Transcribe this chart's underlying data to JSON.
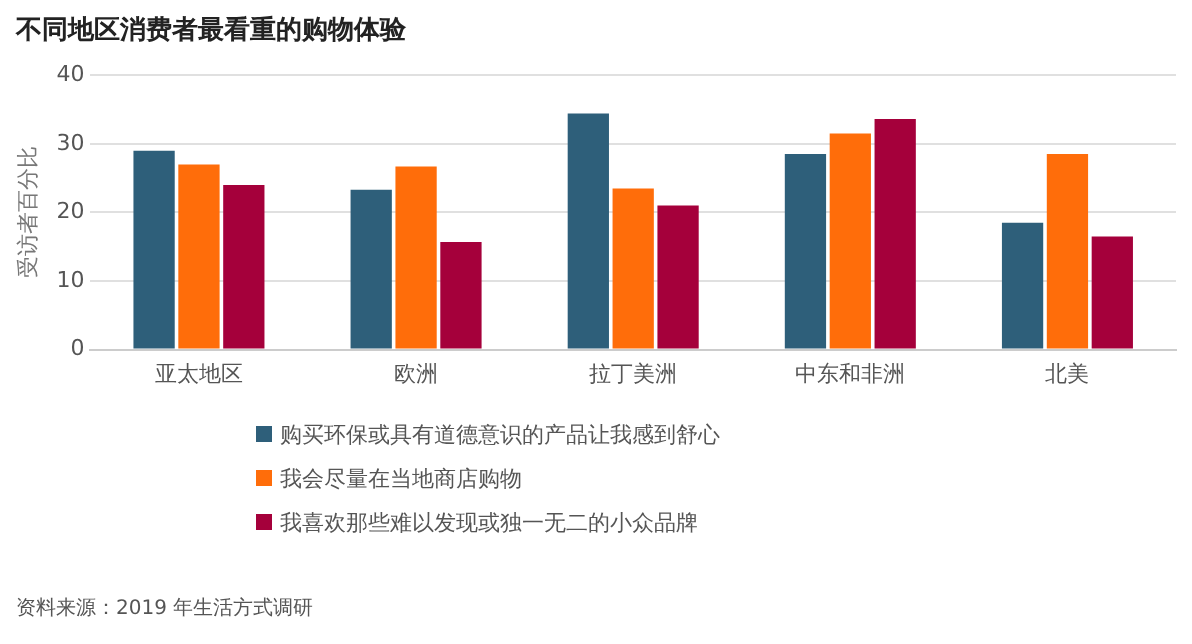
{
  "chart_data": {
    "type": "bar",
    "title": "不同地区消费者最看重的购物体验",
    "ylabel": "受访者百分比",
    "categories": [
      "亚太地区",
      "欧洲",
      "拉丁美洲",
      "中东和非洲",
      "北美"
    ],
    "series": [
      {
        "name": "购买环保或具有道德意识的产品让我感到舒心",
        "color": "#2e5f7a",
        "values": [
          29,
          23.3,
          34.4,
          28.5,
          18.5
        ]
      },
      {
        "name": "我会尽量在当地商店购物",
        "color": "#ff6d0a",
        "values": [
          27,
          26.7,
          23.5,
          31.5,
          28.5
        ]
      },
      {
        "name": "我喜欢那些难以发现或独一无二的小众品牌",
        "color": "#a5003b",
        "values": [
          24,
          15.7,
          21,
          33.6,
          16.5
        ]
      }
    ],
    "ylim": [
      0,
      40
    ],
    "yticks": [
      0,
      10,
      20,
      30,
      40
    ],
    "grid": "y",
    "legend": "bottom",
    "annotations": [
      "资料来源：2019 年生活方式调研"
    ]
  }
}
